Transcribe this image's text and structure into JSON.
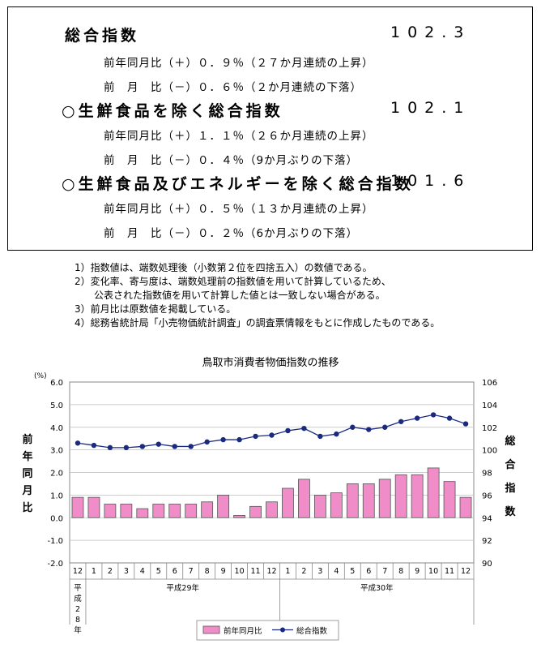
{
  "summary": {
    "rows": [
      {
        "label": "総合指数",
        "value": "102.3",
        "circle": false
      },
      {
        "sub": "前年同月比（＋）０．９％（２７か月連続の上昇）"
      },
      {
        "sub": "前　月　比（－）０．６％（２か月連続の下落）"
      },
      {
        "label": "○生鮮食品を除く総合指数",
        "value": "102.1",
        "circle": true
      },
      {
        "sub": "前年同月比（＋）１．１％（２６か月連続の上昇）"
      },
      {
        "sub": "前　月　比（－）０．４％（9か月ぶりの下落）"
      },
      {
        "label": "○生鮮食品及びエネルギーを除く総合指数",
        "value": "101.6",
        "circle": true
      },
      {
        "sub": "前年同月比（＋）０．５％（１３か月連続の上昇）"
      },
      {
        "sub": "前　月　比（－）０．２％（6か月ぶりの下落）"
      }
    ]
  },
  "notes": [
    "1）指数値は、端数処理後（小数第２位を四捨五入）の数値である。",
    "2）変化率、寄与度は、端数処理前の指数値を用いて計算しているため、",
    "　　公表された指数値を用いて計算した値とは一致しない場合がある。",
    "3）前月比は原数値を掲載している。",
    "4）総務省統計局「小売物価統計調査」の調査票情報をもとに作成したものである。"
  ],
  "chart_data": {
    "type": "bar+line",
    "title": "鳥取市消費者物価指数の推移",
    "categories": [
      "12",
      "1",
      "2",
      "3",
      "4",
      "5",
      "6",
      "7",
      "8",
      "9",
      "10",
      "11",
      "12",
      "1",
      "2",
      "3",
      "4",
      "5",
      "6",
      "7",
      "8",
      "9",
      "10",
      "11",
      "12"
    ],
    "year_groups": [
      {
        "label": "平成28年",
        "start": 0,
        "end": 0,
        "vertical": true
      },
      {
        "label": "平成29年",
        "start": 1,
        "end": 12
      },
      {
        "label": "平成30年",
        "start": 13,
        "end": 24
      }
    ],
    "series": [
      {
        "name": "前年同月比",
        "type": "bar",
        "axis": "left",
        "color": "#f08cc8",
        "values": [
          0.9,
          0.9,
          0.6,
          0.6,
          0.4,
          0.6,
          0.6,
          0.6,
          0.7,
          1.0,
          0.1,
          0.5,
          0.7,
          1.3,
          1.7,
          1.0,
          1.1,
          1.5,
          1.5,
          1.7,
          1.9,
          1.9,
          2.2,
          1.6,
          0.9
        ]
      },
      {
        "name": "総合指数",
        "type": "line",
        "axis": "right",
        "color": "#1a2a80",
        "values": [
          100.6,
          100.4,
          100.2,
          100.2,
          100.3,
          100.5,
          100.3,
          100.3,
          100.7,
          100.9,
          100.9,
          101.2,
          101.3,
          101.7,
          101.9,
          101.2,
          101.4,
          102.0,
          101.8,
          102.0,
          102.5,
          102.8,
          103.1,
          102.8,
          102.3
        ]
      }
    ],
    "y_left": {
      "label": "前年同月比",
      "unit": "(%)",
      "min": -2.0,
      "max": 6.0,
      "ticks": [
        "6.0",
        "5.0",
        "4.0",
        "3.0",
        "2.0",
        "1.0",
        "0.0",
        "-1.0",
        "-2.0"
      ]
    },
    "y_right": {
      "label": "総合指数",
      "min": 90,
      "max": 106,
      "ticks": [
        "106",
        "104",
        "102",
        "100",
        "98",
        "96",
        "94",
        "92",
        "90"
      ]
    },
    "grid": true,
    "legend": "bottom-center"
  }
}
